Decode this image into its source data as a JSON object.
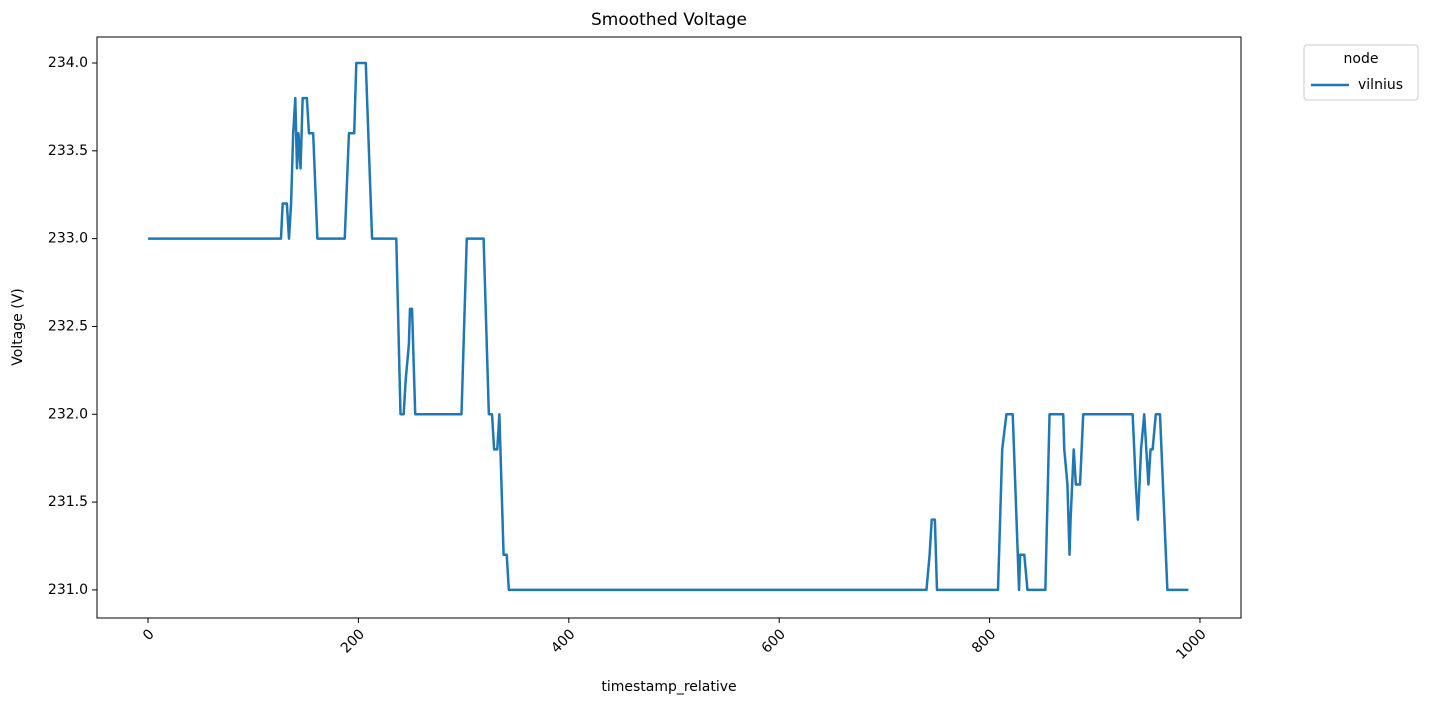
{
  "chart_data": {
    "type": "line",
    "title": "Smoothed Voltage",
    "x_label": "timestamp_relative",
    "y_label": "Voltage (V)",
    "legend_title": "node",
    "legend": "outside-upper-right",
    "x": [
      0,
      126.4,
      128,
      132,
      134,
      136,
      138,
      140,
      141.6,
      143,
      145,
      147,
      151,
      153,
      157,
      161,
      187,
      191,
      196,
      198,
      207,
      213,
      236,
      240,
      243,
      245,
      248,
      249,
      251,
      254,
      298,
      303,
      319,
      324,
      327,
      329,
      332,
      334,
      337,
      338,
      341,
      343,
      740,
      743,
      745,
      748,
      750,
      808,
      809,
      812,
      816,
      822,
      828,
      829,
      833,
      836,
      853,
      857,
      870,
      871,
      874,
      876,
      877,
      880,
      882,
      886,
      889,
      936,
      939,
      941,
      944,
      947,
      949,
      951,
      953,
      955,
      958,
      962,
      969,
      989
    ],
    "series": [
      {
        "name": "vilnius",
        "color": "#1f77b4",
        "values": [
          233.0,
          233.0,
          233.2,
          233.2,
          233.0,
          233.2,
          233.6,
          233.8,
          233.4,
          233.6,
          233.4,
          233.8,
          233.8,
          233.6,
          233.6,
          233.0,
          233.0,
          233.6,
          233.6,
          234.0,
          234.0,
          233.0,
          233.0,
          232.0,
          232.0,
          232.2,
          232.4,
          232.6,
          232.6,
          232.0,
          232.0,
          233.0,
          233.0,
          232.0,
          232.0,
          231.8,
          231.8,
          232.0,
          231.4,
          231.2,
          231.2,
          231.0,
          231.0,
          231.2,
          231.4,
          231.4,
          231.0,
          231.0,
          231.2,
          231.8,
          232.0,
          232.0,
          231.0,
          231.2,
          231.2,
          231.0,
          231.0,
          232.0,
          232.0,
          231.8,
          231.6,
          231.2,
          231.4,
          231.8,
          231.6,
          231.6,
          232.0,
          232.0,
          231.6,
          231.4,
          231.8,
          232.0,
          231.8,
          231.6,
          231.8,
          231.8,
          232.0,
          232.0,
          231.0,
          231.0
        ]
      }
    ],
    "xlim": [
      -48.5,
      1039
    ],
    "ylim": [
      230.84,
      234.148
    ],
    "xticks": [
      0,
      200,
      400,
      600,
      800,
      1000
    ],
    "yticks": [
      {
        "value": 231,
        "label": "231.0"
      },
      231.5,
      {
        "value": 232,
        "label": "232.0"
      },
      232.5,
      {
        "value": 233,
        "label": "233.0"
      },
      233.5,
      {
        "value": 234,
        "label": "234.0"
      }
    ]
  }
}
